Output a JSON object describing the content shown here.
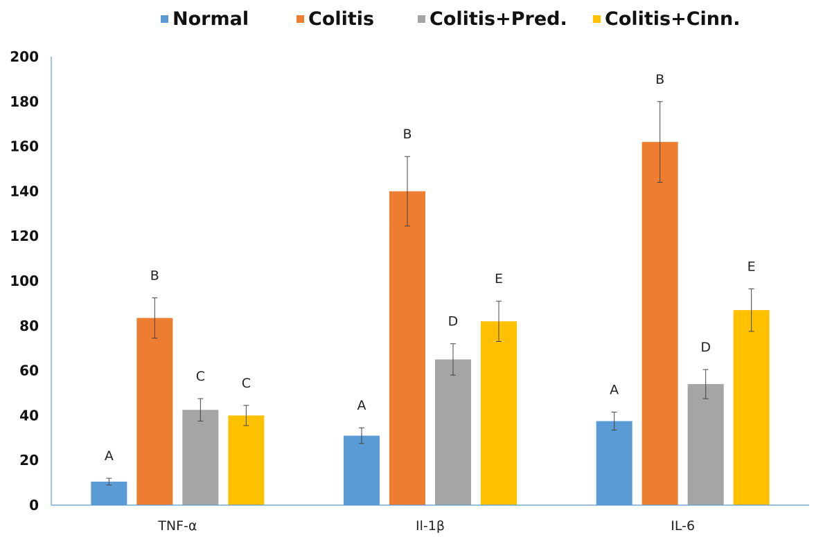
{
  "chart_data": {
    "type": "bar",
    "categories": [
      "TNF-α",
      "Il-1β",
      "IL-6"
    ],
    "series": [
      {
        "name": "Normal",
        "color": "#5B9BD5",
        "values": [
          10.5,
          31,
          37.5
        ],
        "errors": [
          1.5,
          3.5,
          4
        ],
        "labels": [
          "A",
          "A",
          "A"
        ]
      },
      {
        "name": "Colitis",
        "color": "#ED7D31",
        "values": [
          83.5,
          140,
          162
        ],
        "errors": [
          9,
          15.5,
          18
        ],
        "labels": [
          "B",
          "B",
          "B"
        ]
      },
      {
        "name": "Colitis+Pred.",
        "color": "#A5A5A5",
        "values": [
          42.5,
          65,
          54
        ],
        "errors": [
          5,
          7,
          6.5
        ],
        "labels": [
          "C",
          "D",
          "D"
        ]
      },
      {
        "name": "Colitis+Cinn.",
        "color": "#FFC000",
        "values": [
          40,
          82,
          87
        ],
        "errors": [
          4.5,
          9,
          9.5
        ],
        "labels": [
          "C",
          "E",
          "E"
        ]
      }
    ],
    "yticks": [
      0,
      20,
      40,
      60,
      80,
      100,
      120,
      140,
      160,
      180,
      200
    ],
    "ylim": [
      0,
      200
    ],
    "legend_position": "top",
    "grid": false
  }
}
